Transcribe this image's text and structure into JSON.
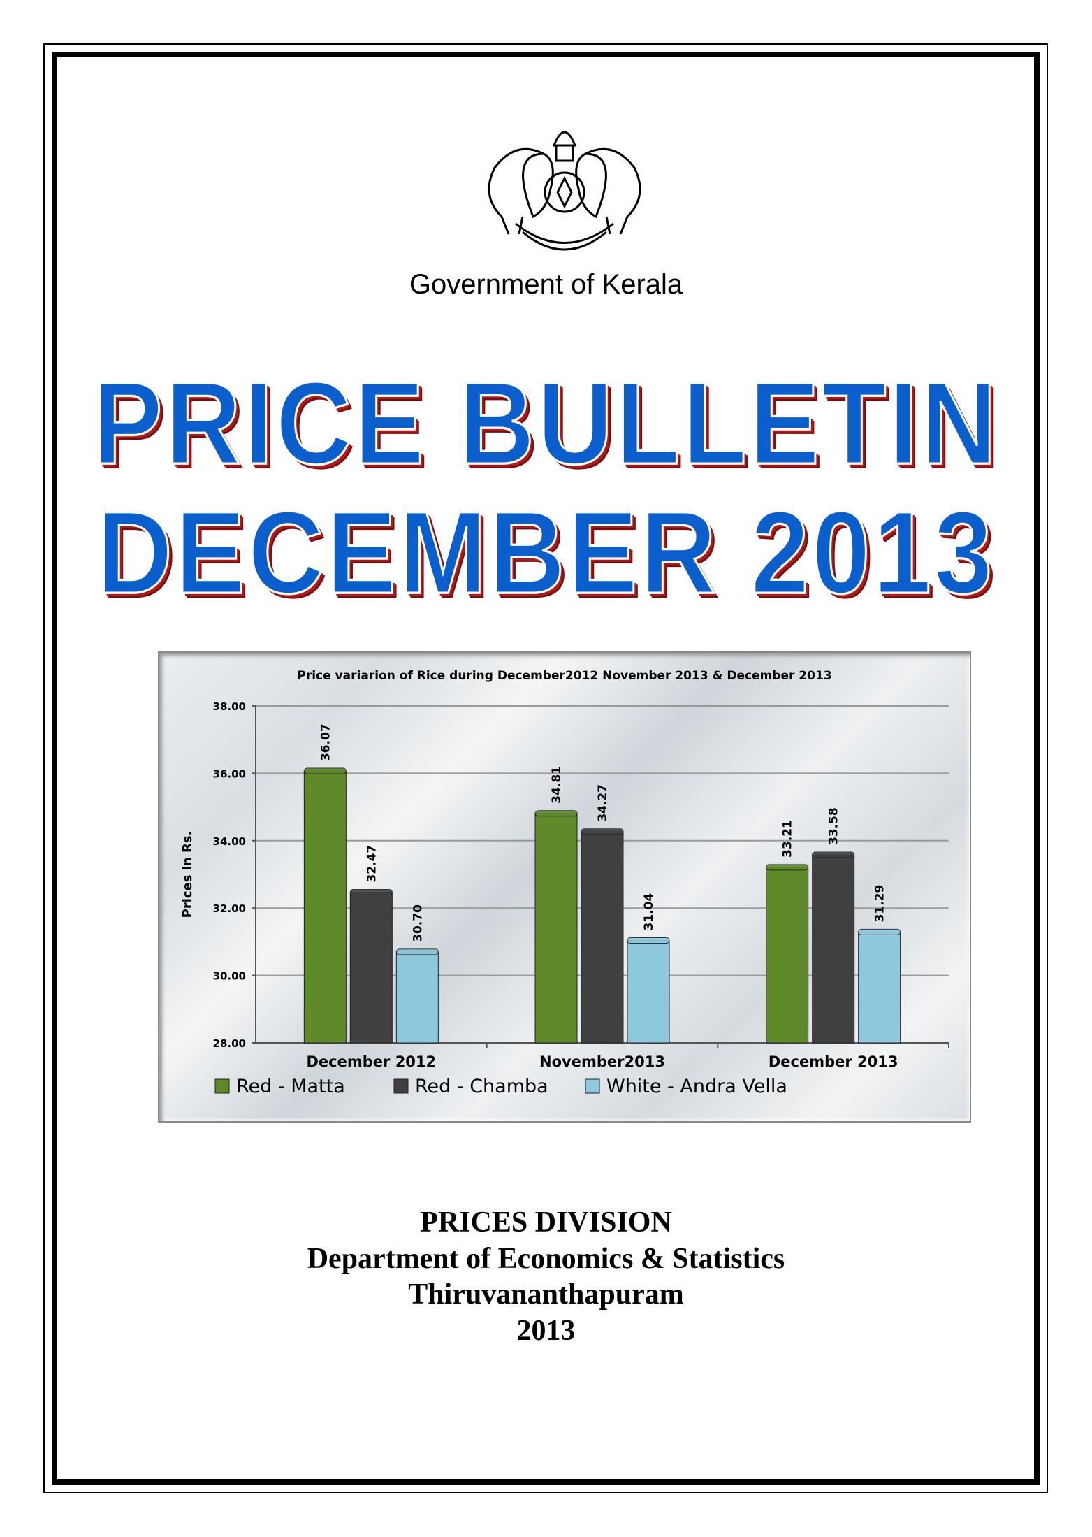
{
  "page": {
    "government": "Government of Kerala",
    "title_line1": "PRICE BULLETIN",
    "title_line2": "DECEMBER 2013",
    "division": "PRICES DIVISION",
    "department": "Department of Economics & Statistics",
    "city": "Thiruvananthapuram",
    "year": "2013",
    "emblem_text": "GOVERNMENT OF KERALA"
  },
  "chart_data": {
    "type": "bar",
    "title": "Price variarion of Rice during December2012 November 2013 & December 2013",
    "ylabel": "Prices in Rs.",
    "xlabel": "",
    "ylim": [
      28,
      38
    ],
    "yticks": [
      "28.00",
      "30.00",
      "32.00",
      "34.00",
      "36.00",
      "38.00"
    ],
    "categories": [
      "December 2012",
      "November2013",
      "December 2013"
    ],
    "series": [
      {
        "name": "Red - Matta",
        "values": [
          36.07,
          34.81,
          33.21
        ],
        "labels": [
          "36.07",
          "34.81",
          "33.21"
        ],
        "color": "#5f8a2a"
      },
      {
        "name": "Red - Chamba",
        "values": [
          32.47,
          34.27,
          33.58
        ],
        "labels": [
          "32.47",
          "34.27",
          "33.58"
        ],
        "color": "#404040"
      },
      {
        "name": "White - Andra Vella",
        "values": [
          30.7,
          31.04,
          31.29
        ],
        "labels": [
          "30.70",
          "31.04",
          "31.29"
        ],
        "color": "#8ec8dc"
      }
    ],
    "grid": true,
    "legend": "bottom"
  }
}
